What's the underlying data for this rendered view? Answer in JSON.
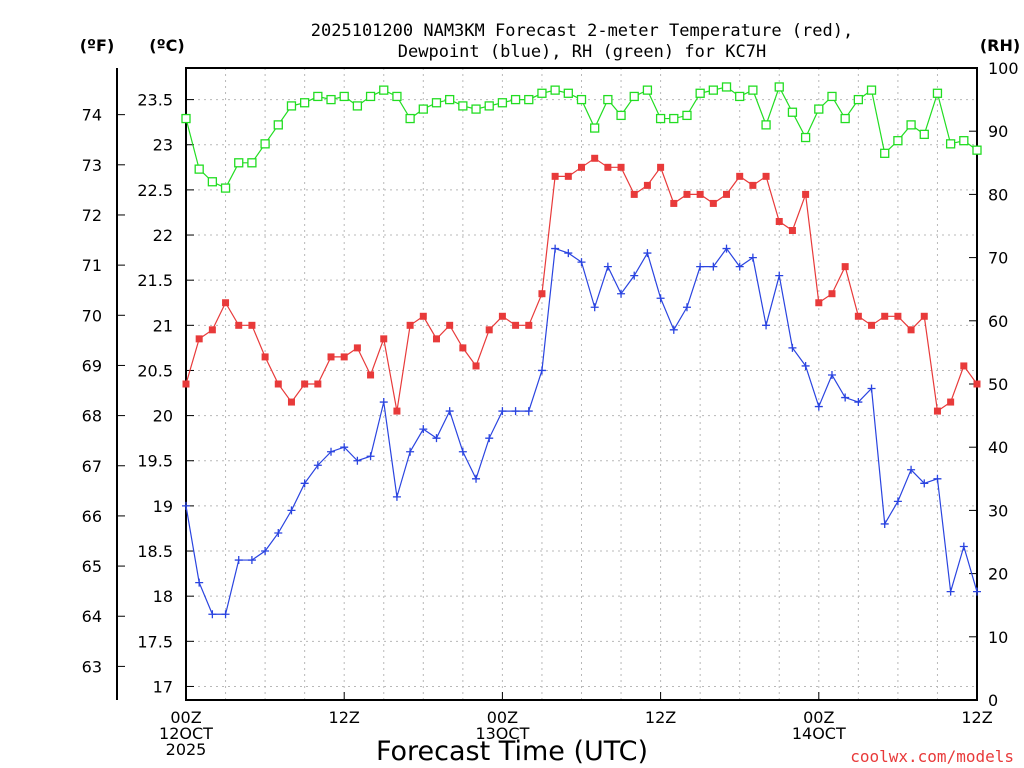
{
  "chart_data": {
    "type": "line",
    "title_line1": "2025101200 NAM3KM Forecast 2-meter Temperature (red),",
    "title_line2": "Dewpoint (blue), RH (green) for KC7H",
    "units": {
      "fahrenheit": "(ºF)",
      "celsius": "(ºC)",
      "rh": "(RH)"
    },
    "xlabel": "Forecast Time (UTC)",
    "credit": "coolwx.com/models",
    "xlim_hours": [
      0,
      60
    ],
    "ylim_celsius": [
      16.85,
      23.85
    ],
    "ylim_rh": [
      0,
      100
    ],
    "x_ticks": [
      {
        "h": 0,
        "line1": "00Z",
        "line2": "12OCT",
        "line3": "2025"
      },
      {
        "h": 12,
        "line1": "12Z",
        "line2": "",
        "line3": ""
      },
      {
        "h": 24,
        "line1": "00Z",
        "line2": "13OCT",
        "line3": ""
      },
      {
        "h": 36,
        "line1": "12Z",
        "line2": "",
        "line3": ""
      },
      {
        "h": 48,
        "line1": "00Z",
        "line2": "14OCT",
        "line3": ""
      },
      {
        "h": 60,
        "line1": "12Z",
        "line2": "",
        "line3": ""
      }
    ],
    "y_ticks_celsius": [
      "17",
      "17.5",
      "18",
      "18.5",
      "19",
      "19.5",
      "20",
      "20.5",
      "21",
      "21.5",
      "22",
      "22.5",
      "23",
      "23.5"
    ],
    "y_ticks_fahrenheit": [
      "63",
      "64",
      "65",
      "66",
      "67",
      "68",
      "69",
      "70",
      "71",
      "72",
      "73",
      "74"
    ],
    "y_ticks_rh": [
      "0",
      "10",
      "20",
      "30",
      "40",
      "50",
      "60",
      "70",
      "80",
      "90",
      "100"
    ],
    "series": [
      {
        "name": "Temperature",
        "color": "#e83a3a",
        "marker": "filled-square",
        "values": [
          20.35,
          20.85,
          20.95,
          21.25,
          21.0,
          21.0,
          20.65,
          20.35,
          20.15,
          20.35,
          20.35,
          20.65,
          20.65,
          20.75,
          20.45,
          20.85,
          20.05,
          21.0,
          21.1,
          20.85,
          21.0,
          20.75,
          20.55,
          20.95,
          21.1,
          21.0,
          21.0,
          21.35,
          22.65,
          22.65,
          22.75,
          22.85,
          22.75,
          22.75,
          22.45,
          22.55,
          22.75,
          22.35,
          22.45,
          22.45,
          22.35,
          22.45,
          22.65,
          22.55,
          22.65,
          22.15,
          22.05,
          22.45,
          21.25,
          21.35,
          21.65,
          21.1,
          21.0,
          21.1,
          21.1,
          20.95,
          21.1,
          20.05,
          20.15,
          20.55,
          20.35
        ]
      },
      {
        "name": "Dewpoint",
        "color": "#2a44e0",
        "marker": "plus",
        "values": [
          19.0,
          18.15,
          17.8,
          17.8,
          18.4,
          18.4,
          18.5,
          18.7,
          18.95,
          19.25,
          19.45,
          19.6,
          19.65,
          19.5,
          19.55,
          20.15,
          19.1,
          19.6,
          19.85,
          19.75,
          20.05,
          19.6,
          19.3,
          19.75,
          20.05,
          20.05,
          20.05,
          20.5,
          21.85,
          21.8,
          21.7,
          21.2,
          21.65,
          21.35,
          21.55,
          21.8,
          21.3,
          20.95,
          21.2,
          21.65,
          21.65,
          21.85,
          21.65,
          21.75,
          21.0,
          21.55,
          20.75,
          20.55,
          20.1,
          20.45,
          20.2,
          20.15,
          20.3,
          18.8,
          19.05,
          19.4,
          19.25,
          19.3,
          18.05,
          18.55,
          18.05
        ]
      },
      {
        "name": "RH",
        "color": "#22dd22",
        "marker": "open-square",
        "values": [
          92,
          84,
          82,
          81,
          85,
          85,
          88,
          91,
          94,
          94.5,
          95.5,
          95,
          95.5,
          94,
          95.5,
          96.5,
          95.5,
          92,
          93.5,
          94.5,
          95,
          94,
          93.5,
          94,
          94.5,
          95,
          95,
          96,
          96.5,
          96,
          95,
          90.5,
          95,
          92.5,
          95.5,
          96.5,
          92,
          92,
          92.5,
          96,
          96.5,
          97,
          95.5,
          96.5,
          91,
          97,
          93,
          89,
          93.5,
          95.5,
          92,
          95,
          96.5,
          86.5,
          88.5,
          91,
          89.5,
          96,
          88,
          88.5,
          87
        ]
      }
    ]
  }
}
